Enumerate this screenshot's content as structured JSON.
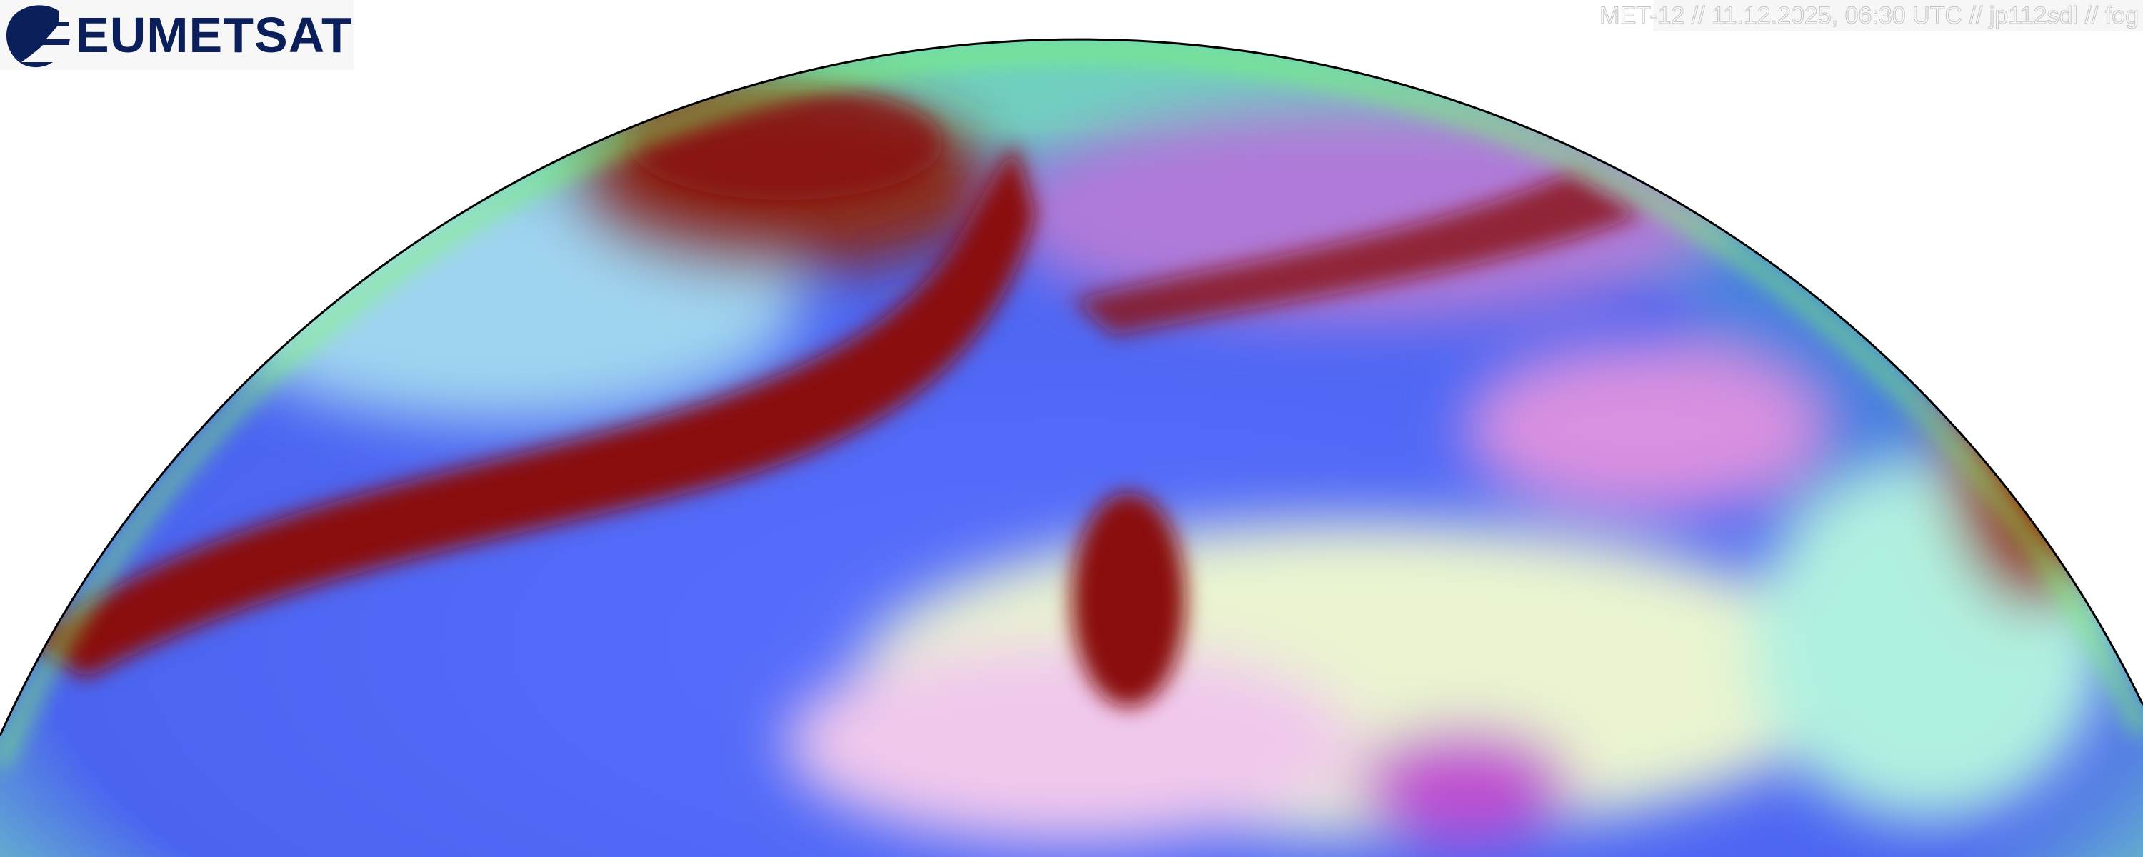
{
  "logo": {
    "brand": "EUMETSAT",
    "color": "#0b1f5a"
  },
  "caption": {
    "text": "MET-12 // 11.12.2025, 06:30 UTC // jp112sdl // fog"
  },
  "image": {
    "type": "satellite-rgb-composite",
    "colors": {
      "ocean": "#4a6cf5",
      "cloud_band": "#8a1010",
      "desert": "#f4f8e0",
      "limb": "#7fe07f",
      "land_pink": "#e070e0"
    }
  }
}
